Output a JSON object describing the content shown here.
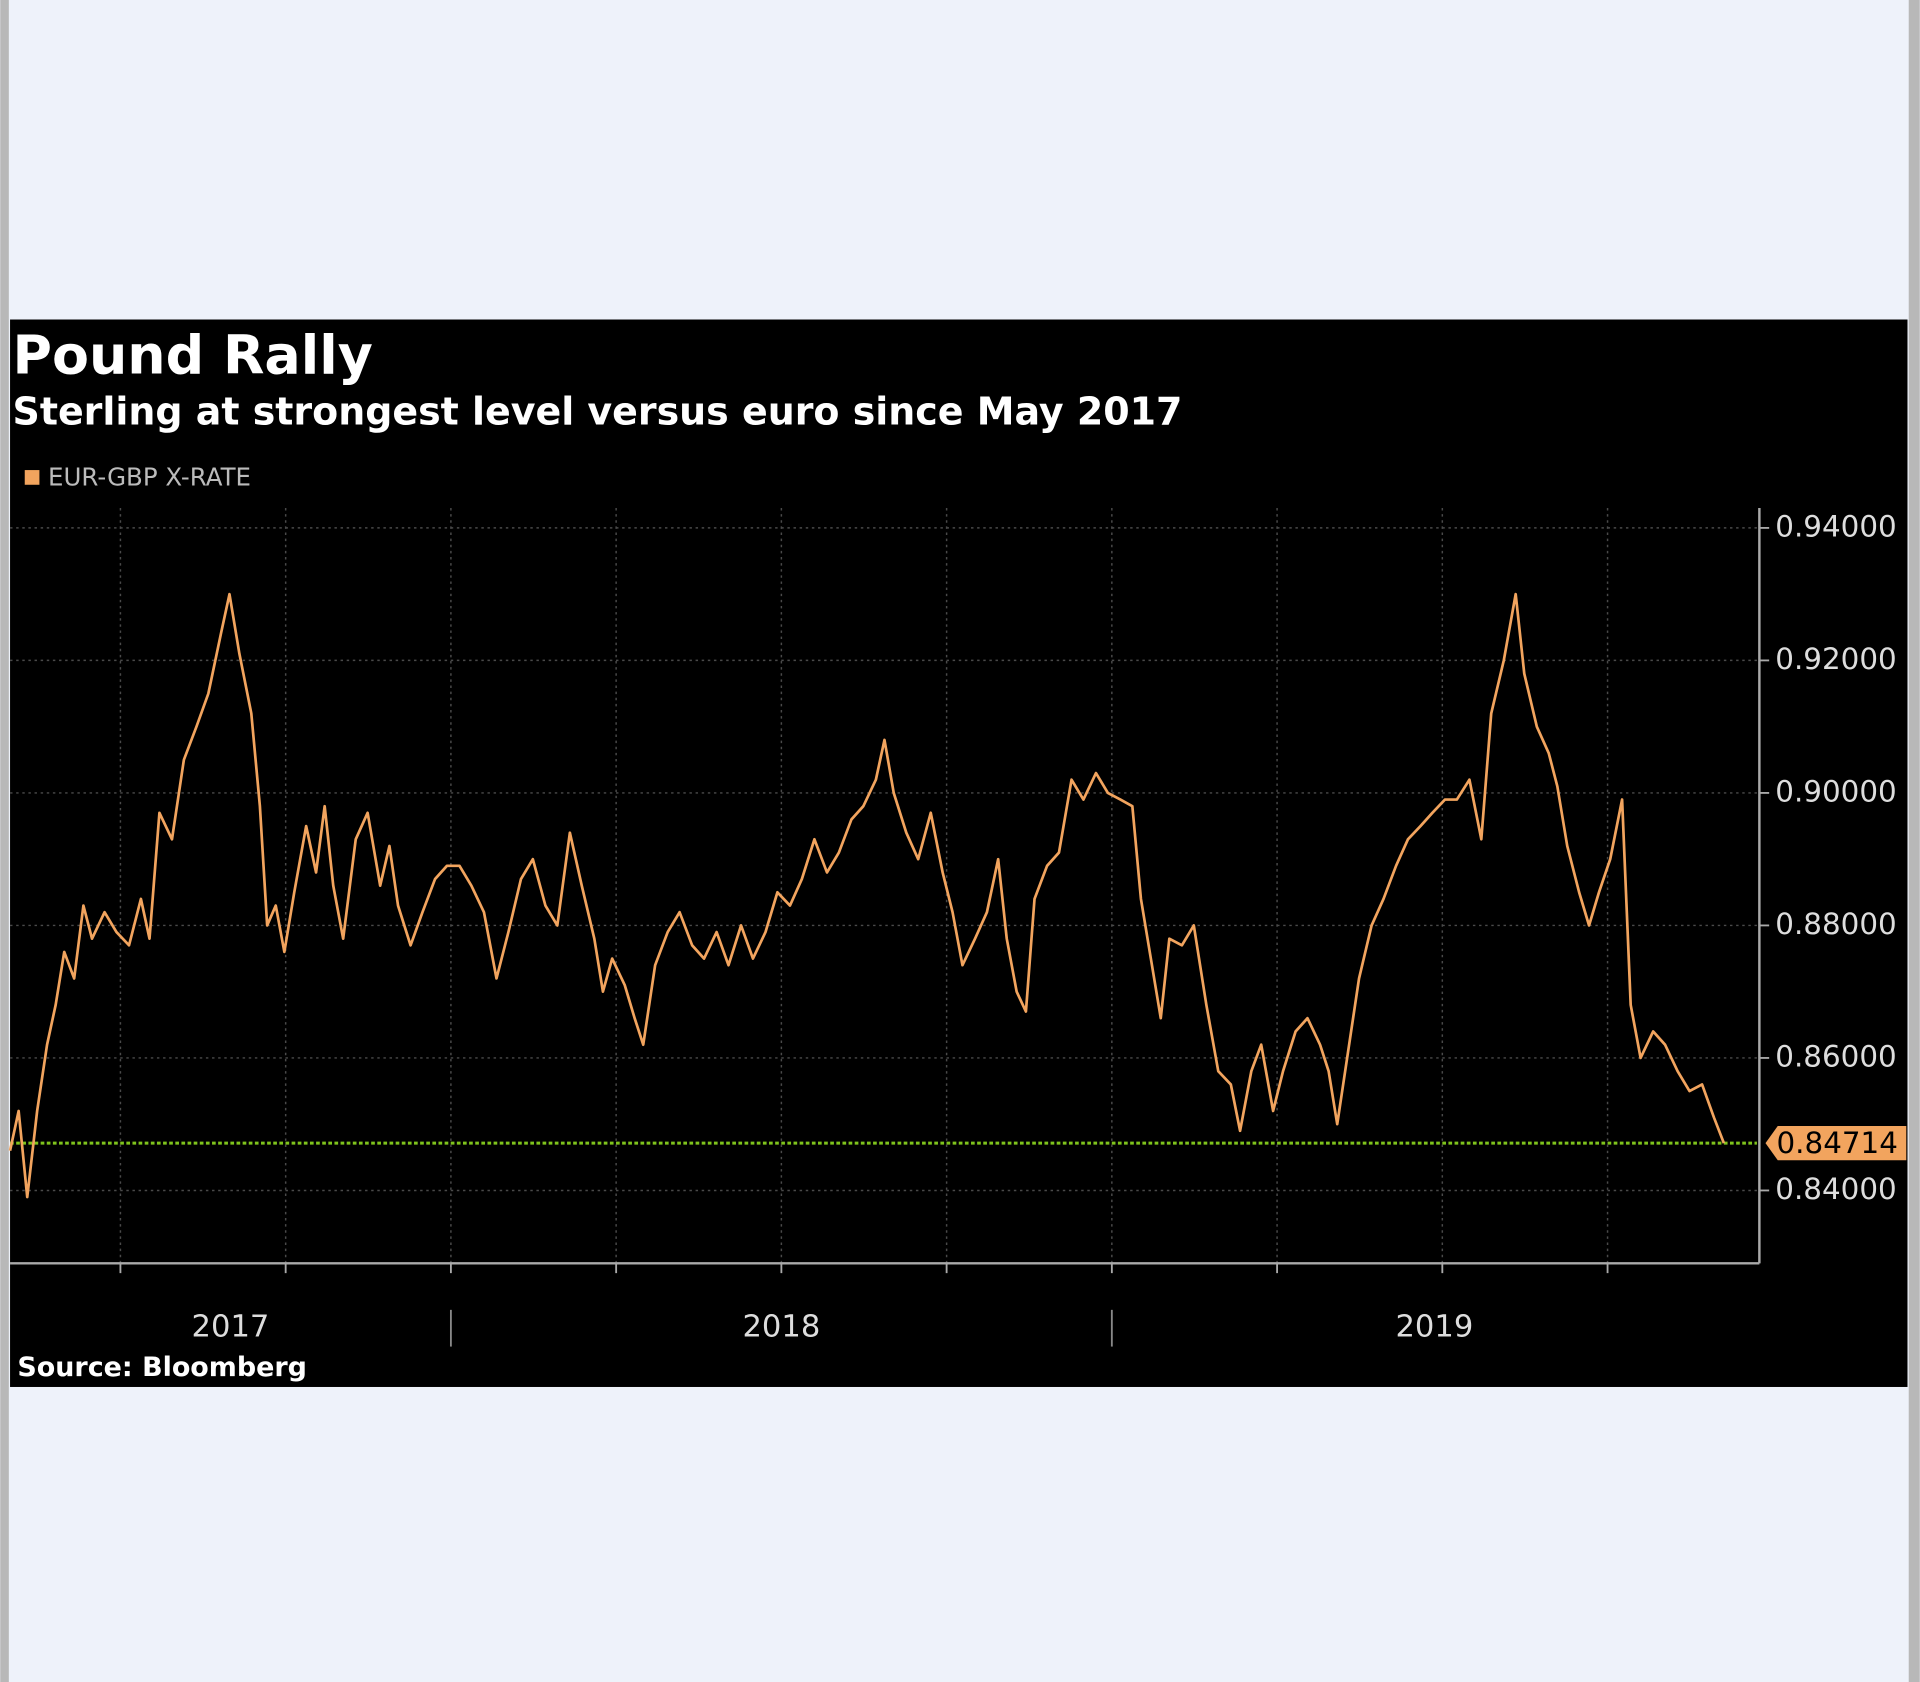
{
  "chart_data": {
    "type": "line",
    "title": "Pound Rally",
    "subtitle": "Sterling at strongest level versus euro since May 2017",
    "source": "Source: Bloomberg",
    "x": [
      2017.333,
      2017.346,
      2017.359,
      2017.374,
      2017.389,
      2017.402,
      2017.415,
      2017.43,
      2017.444,
      2017.457,
      2017.476,
      2017.494,
      2017.513,
      2017.531,
      2017.544,
      2017.559,
      2017.578,
      2017.596,
      2017.615,
      2017.633,
      2017.652,
      2017.665,
      2017.68,
      2017.698,
      2017.711,
      2017.722,
      2017.735,
      2017.748,
      2017.763,
      2017.781,
      2017.796,
      2017.809,
      2017.822,
      2017.837,
      2017.856,
      2017.874,
      2017.893,
      2017.907,
      2017.92,
      2017.939,
      2017.957,
      2017.976,
      2017.994,
      2018.013,
      2018.031,
      2018.05,
      2018.069,
      2018.087,
      2018.106,
      2018.124,
      2018.143,
      2018.161,
      2018.18,
      2018.198,
      2018.217,
      2018.23,
      2018.244,
      2018.263,
      2018.278,
      2018.291,
      2018.309,
      2018.328,
      2018.346,
      2018.365,
      2018.383,
      2018.402,
      2018.42,
      2018.439,
      2018.457,
      2018.476,
      2018.494,
      2018.513,
      2018.531,
      2018.55,
      2018.569,
      2018.587,
      2018.606,
      2018.624,
      2018.643,
      2018.656,
      2018.67,
      2018.689,
      2018.707,
      2018.726,
      2018.744,
      2018.759,
      2018.774,
      2018.793,
      2018.811,
      2018.828,
      2018.841,
      2018.856,
      2018.87,
      2018.883,
      2018.902,
      2018.92,
      2018.939,
      2018.957,
      2018.976,
      2018.994,
      2019.013,
      2019.031,
      2019.044,
      2019.059,
      2019.074,
      2019.087,
      2019.106,
      2019.124,
      2019.143,
      2019.161,
      2019.18,
      2019.194,
      2019.211,
      2019.226,
      2019.244,
      2019.259,
      2019.278,
      2019.296,
      2019.315,
      2019.328,
      2019.341,
      2019.356,
      2019.374,
      2019.393,
      2019.411,
      2019.43,
      2019.448,
      2019.467,
      2019.485,
      2019.504,
      2019.522,
      2019.541,
      2019.559,
      2019.574,
      2019.593,
      2019.611,
      2019.624,
      2019.643,
      2019.661,
      2019.674,
      2019.689,
      2019.707,
      2019.722,
      2019.737,
      2019.754,
      2019.772,
      2019.785,
      2019.8,
      2019.819,
      2019.837,
      2019.856,
      2019.874,
      2019.893,
      2019.911,
      2019.926
    ],
    "series": [
      {
        "name": "EUR-GBP X-RATE",
        "color": "#f2a45e",
        "values": [
          0.846,
          0.852,
          0.839,
          0.852,
          0.862,
          0.868,
          0.876,
          0.872,
          0.883,
          0.878,
          0.882,
          0.879,
          0.877,
          0.884,
          0.878,
          0.897,
          0.893,
          0.905,
          0.91,
          0.915,
          0.924,
          0.93,
          0.921,
          0.912,
          0.898,
          0.88,
          0.883,
          0.876,
          0.885,
          0.895,
          0.888,
          0.898,
          0.886,
          0.878,
          0.893,
          0.897,
          0.886,
          0.892,
          0.883,
          0.877,
          0.882,
          0.887,
          0.889,
          0.889,
          0.886,
          0.882,
          0.872,
          0.879,
          0.887,
          0.89,
          0.883,
          0.88,
          0.894,
          0.886,
          0.878,
          0.87,
          0.875,
          0.871,
          0.866,
          0.862,
          0.874,
          0.879,
          0.882,
          0.877,
          0.875,
          0.879,
          0.874,
          0.88,
          0.875,
          0.879,
          0.885,
          0.883,
          0.887,
          0.893,
          0.888,
          0.891,
          0.896,
          0.898,
          0.902,
          0.908,
          0.9,
          0.894,
          0.89,
          0.897,
          0.888,
          0.882,
          0.874,
          0.878,
          0.882,
          0.89,
          0.878,
          0.87,
          0.867,
          0.884,
          0.889,
          0.891,
          0.902,
          0.899,
          0.903,
          0.9,
          0.899,
          0.898,
          0.884,
          0.875,
          0.866,
          0.878,
          0.877,
          0.88,
          0.868,
          0.858,
          0.856,
          0.849,
          0.858,
          0.862,
          0.852,
          0.858,
          0.864,
          0.866,
          0.862,
          0.858,
          0.85,
          0.86,
          0.872,
          0.88,
          0.884,
          0.889,
          0.893,
          0.895,
          0.897,
          0.899,
          0.899,
          0.902,
          0.893,
          0.912,
          0.92,
          0.93,
          0.918,
          0.91,
          0.906,
          0.901,
          0.892,
          0.885,
          0.88,
          0.885,
          0.89,
          0.899,
          0.868,
          0.86,
          0.864,
          0.862,
          0.858,
          0.855,
          0.856,
          0.851,
          0.84714
        ]
      }
    ],
    "xlim": [
      2017.333,
      2019.976
    ],
    "xticks": [
      2017.5,
      2017.75,
      2018,
      2018.25,
      2018.5,
      2018.75,
      2019,
      2019.25,
      2019.5,
      2019.75
    ],
    "year_labels": [
      "2017",
      "2018",
      "2019"
    ],
    "ylim": [
      0.829,
      0.943
    ],
    "yticks": [
      {
        "value": 0.84,
        "label": "0.84000"
      },
      {
        "value": 0.86,
        "label": "0.86000"
      },
      {
        "value": 0.88,
        "label": "0.88000"
      },
      {
        "value": 0.9,
        "label": "0.90000"
      },
      {
        "value": 0.92,
        "label": "0.92000"
      },
      {
        "value": 0.94,
        "label": "0.94000"
      }
    ],
    "reference_line": {
      "value": 0.84714,
      "label": "0.84714",
      "color": "#7fc31c"
    },
    "grid": true
  }
}
